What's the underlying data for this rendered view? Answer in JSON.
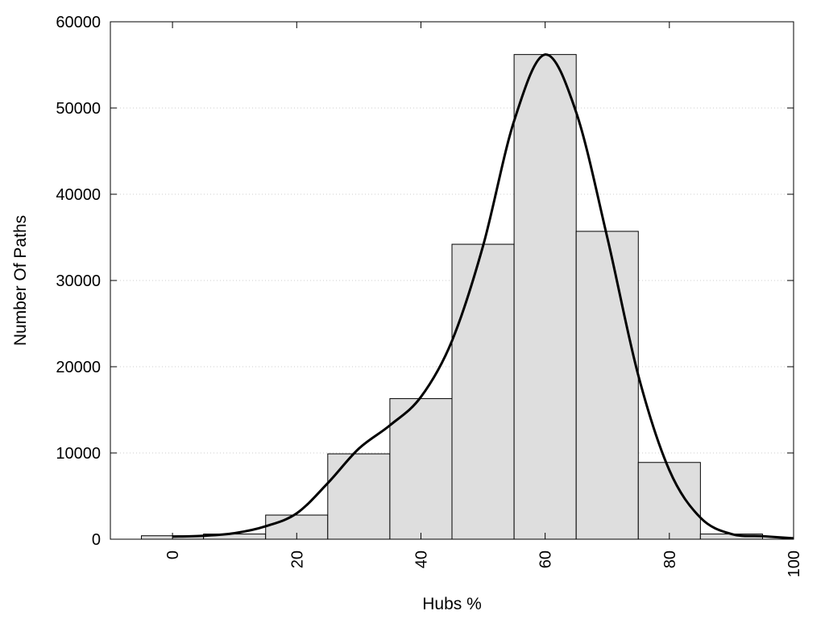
{
  "chart_data": {
    "type": "bar",
    "title": "",
    "xlabel": "Hubs %",
    "ylabel": "Number Of Paths",
    "xlim": [
      -10,
      100
    ],
    "ylim": [
      0,
      60000
    ],
    "x_ticks": [
      0,
      20,
      40,
      60,
      80,
      100
    ],
    "y_ticks": [
      0,
      10000,
      20000,
      30000,
      40000,
      50000,
      60000
    ],
    "grid": "horizontal dotted",
    "legend": "none",
    "bin_width": 10,
    "bins": [
      {
        "center": 0,
        "value": 400
      },
      {
        "center": 10,
        "value": 600
      },
      {
        "center": 20,
        "value": 2800
      },
      {
        "center": 30,
        "value": 9900
      },
      {
        "center": 40,
        "value": 16300
      },
      {
        "center": 50,
        "value": 34200
      },
      {
        "center": 60,
        "value": 56200
      },
      {
        "center": 70,
        "value": 35700
      },
      {
        "center": 80,
        "value": 8900
      },
      {
        "center": 90,
        "value": 600
      }
    ],
    "density_curve": [
      {
        "x": 0,
        "y": 300
      },
      {
        "x": 5,
        "y": 400
      },
      {
        "x": 10,
        "y": 700
      },
      {
        "x": 15,
        "y": 1500
      },
      {
        "x": 20,
        "y": 3000
      },
      {
        "x": 25,
        "y": 6500
      },
      {
        "x": 30,
        "y": 10500
      },
      {
        "x": 35,
        "y": 13200
      },
      {
        "x": 40,
        "y": 16500
      },
      {
        "x": 45,
        "y": 23000
      },
      {
        "x": 50,
        "y": 34000
      },
      {
        "x": 55,
        "y": 48500
      },
      {
        "x": 60,
        "y": 56200
      },
      {
        "x": 65,
        "y": 49500
      },
      {
        "x": 70,
        "y": 35000
      },
      {
        "x": 75,
        "y": 19000
      },
      {
        "x": 80,
        "y": 8000
      },
      {
        "x": 85,
        "y": 2500
      },
      {
        "x": 90,
        "y": 600
      },
      {
        "x": 95,
        "y": 350
      },
      {
        "x": 100,
        "y": 100
      }
    ],
    "colors": {
      "bar_fill": "#dedede",
      "bar_stroke": "#000000",
      "curve": "#000000",
      "grid": "#cccccc"
    }
  }
}
